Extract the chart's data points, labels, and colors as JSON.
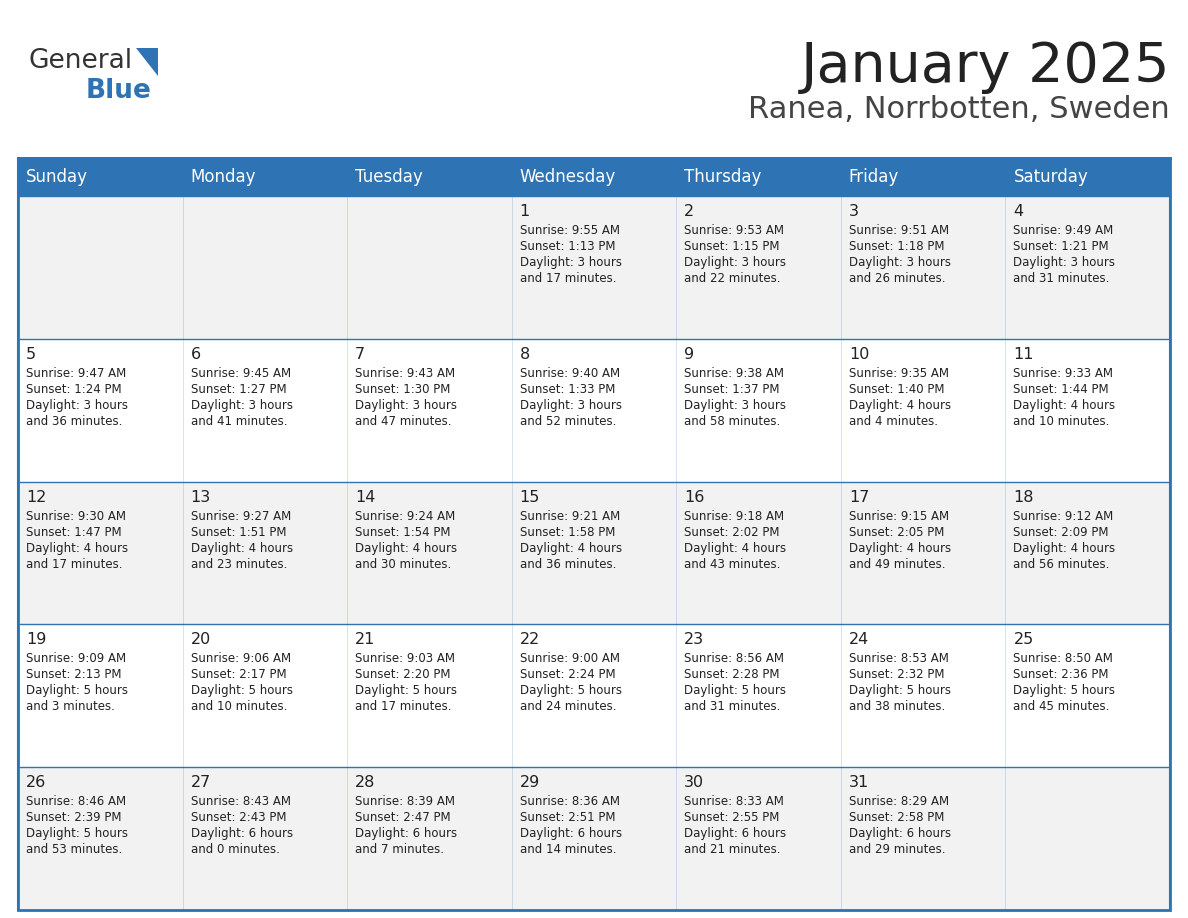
{
  "title": "January 2025",
  "subtitle": "Ranea, Norrbotten, Sweden",
  "header_bg": "#2E74B5",
  "header_text_color": "#FFFFFF",
  "cell_bg_odd": "#F2F2F2",
  "cell_bg_even": "#FFFFFF",
  "border_color": "#2E74B5",
  "text_color": "#222222",
  "day_headers": [
    "Sunday",
    "Monday",
    "Tuesday",
    "Wednesday",
    "Thursday",
    "Friday",
    "Saturday"
  ],
  "days": [
    {
      "day": 1,
      "col": 3,
      "row": 0,
      "sunrise": "9:55 AM",
      "sunset": "1:13 PM",
      "daylight": "3 hours",
      "daylight2": "and 17 minutes."
    },
    {
      "day": 2,
      "col": 4,
      "row": 0,
      "sunrise": "9:53 AM",
      "sunset": "1:15 PM",
      "daylight": "3 hours",
      "daylight2": "and 22 minutes."
    },
    {
      "day": 3,
      "col": 5,
      "row": 0,
      "sunrise": "9:51 AM",
      "sunset": "1:18 PM",
      "daylight": "3 hours",
      "daylight2": "and 26 minutes."
    },
    {
      "day": 4,
      "col": 6,
      "row": 0,
      "sunrise": "9:49 AM",
      "sunset": "1:21 PM",
      "daylight": "3 hours",
      "daylight2": "and 31 minutes."
    },
    {
      "day": 5,
      "col": 0,
      "row": 1,
      "sunrise": "9:47 AM",
      "sunset": "1:24 PM",
      "daylight": "3 hours",
      "daylight2": "and 36 minutes."
    },
    {
      "day": 6,
      "col": 1,
      "row": 1,
      "sunrise": "9:45 AM",
      "sunset": "1:27 PM",
      "daylight": "3 hours",
      "daylight2": "and 41 minutes."
    },
    {
      "day": 7,
      "col": 2,
      "row": 1,
      "sunrise": "9:43 AM",
      "sunset": "1:30 PM",
      "daylight": "3 hours",
      "daylight2": "and 47 minutes."
    },
    {
      "day": 8,
      "col": 3,
      "row": 1,
      "sunrise": "9:40 AM",
      "sunset": "1:33 PM",
      "daylight": "3 hours",
      "daylight2": "and 52 minutes."
    },
    {
      "day": 9,
      "col": 4,
      "row": 1,
      "sunrise": "9:38 AM",
      "sunset": "1:37 PM",
      "daylight": "3 hours",
      "daylight2": "and 58 minutes."
    },
    {
      "day": 10,
      "col": 5,
      "row": 1,
      "sunrise": "9:35 AM",
      "sunset": "1:40 PM",
      "daylight": "4 hours",
      "daylight2": "and 4 minutes."
    },
    {
      "day": 11,
      "col": 6,
      "row": 1,
      "sunrise": "9:33 AM",
      "sunset": "1:44 PM",
      "daylight": "4 hours",
      "daylight2": "and 10 minutes."
    },
    {
      "day": 12,
      "col": 0,
      "row": 2,
      "sunrise": "9:30 AM",
      "sunset": "1:47 PM",
      "daylight": "4 hours",
      "daylight2": "and 17 minutes."
    },
    {
      "day": 13,
      "col": 1,
      "row": 2,
      "sunrise": "9:27 AM",
      "sunset": "1:51 PM",
      "daylight": "4 hours",
      "daylight2": "and 23 minutes."
    },
    {
      "day": 14,
      "col": 2,
      "row": 2,
      "sunrise": "9:24 AM",
      "sunset": "1:54 PM",
      "daylight": "4 hours",
      "daylight2": "and 30 minutes."
    },
    {
      "day": 15,
      "col": 3,
      "row": 2,
      "sunrise": "9:21 AM",
      "sunset": "1:58 PM",
      "daylight": "4 hours",
      "daylight2": "and 36 minutes."
    },
    {
      "day": 16,
      "col": 4,
      "row": 2,
      "sunrise": "9:18 AM",
      "sunset": "2:02 PM",
      "daylight": "4 hours",
      "daylight2": "and 43 minutes."
    },
    {
      "day": 17,
      "col": 5,
      "row": 2,
      "sunrise": "9:15 AM",
      "sunset": "2:05 PM",
      "daylight": "4 hours",
      "daylight2": "and 49 minutes."
    },
    {
      "day": 18,
      "col": 6,
      "row": 2,
      "sunrise": "9:12 AM",
      "sunset": "2:09 PM",
      "daylight": "4 hours",
      "daylight2": "and 56 minutes."
    },
    {
      "day": 19,
      "col": 0,
      "row": 3,
      "sunrise": "9:09 AM",
      "sunset": "2:13 PM",
      "daylight": "5 hours",
      "daylight2": "and 3 minutes."
    },
    {
      "day": 20,
      "col": 1,
      "row": 3,
      "sunrise": "9:06 AM",
      "sunset": "2:17 PM",
      "daylight": "5 hours",
      "daylight2": "and 10 minutes."
    },
    {
      "day": 21,
      "col": 2,
      "row": 3,
      "sunrise": "9:03 AM",
      "sunset": "2:20 PM",
      "daylight": "5 hours",
      "daylight2": "and 17 minutes."
    },
    {
      "day": 22,
      "col": 3,
      "row": 3,
      "sunrise": "9:00 AM",
      "sunset": "2:24 PM",
      "daylight": "5 hours",
      "daylight2": "and 24 minutes."
    },
    {
      "day": 23,
      "col": 4,
      "row": 3,
      "sunrise": "8:56 AM",
      "sunset": "2:28 PM",
      "daylight": "5 hours",
      "daylight2": "and 31 minutes."
    },
    {
      "day": 24,
      "col": 5,
      "row": 3,
      "sunrise": "8:53 AM",
      "sunset": "2:32 PM",
      "daylight": "5 hours",
      "daylight2": "and 38 minutes."
    },
    {
      "day": 25,
      "col": 6,
      "row": 3,
      "sunrise": "8:50 AM",
      "sunset": "2:36 PM",
      "daylight": "5 hours",
      "daylight2": "and 45 minutes."
    },
    {
      "day": 26,
      "col": 0,
      "row": 4,
      "sunrise": "8:46 AM",
      "sunset": "2:39 PM",
      "daylight": "5 hours",
      "daylight2": "and 53 minutes."
    },
    {
      "day": 27,
      "col": 1,
      "row": 4,
      "sunrise": "8:43 AM",
      "sunset": "2:43 PM",
      "daylight": "6 hours",
      "daylight2": "and 0 minutes."
    },
    {
      "day": 28,
      "col": 2,
      "row": 4,
      "sunrise": "8:39 AM",
      "sunset": "2:47 PM",
      "daylight": "6 hours",
      "daylight2": "and 7 minutes."
    },
    {
      "day": 29,
      "col": 3,
      "row": 4,
      "sunrise": "8:36 AM",
      "sunset": "2:51 PM",
      "daylight": "6 hours",
      "daylight2": "and 14 minutes."
    },
    {
      "day": 30,
      "col": 4,
      "row": 4,
      "sunrise": "8:33 AM",
      "sunset": "2:55 PM",
      "daylight": "6 hours",
      "daylight2": "and 21 minutes."
    },
    {
      "day": 31,
      "col": 5,
      "row": 4,
      "sunrise": "8:29 AM",
      "sunset": "2:58 PM",
      "daylight": "6 hours",
      "daylight2": "and 29 minutes."
    }
  ],
  "logo_text1": "General",
  "logo_text2": "Blue",
  "logo_color1": "#333333",
  "logo_color2": "#2E74B5"
}
